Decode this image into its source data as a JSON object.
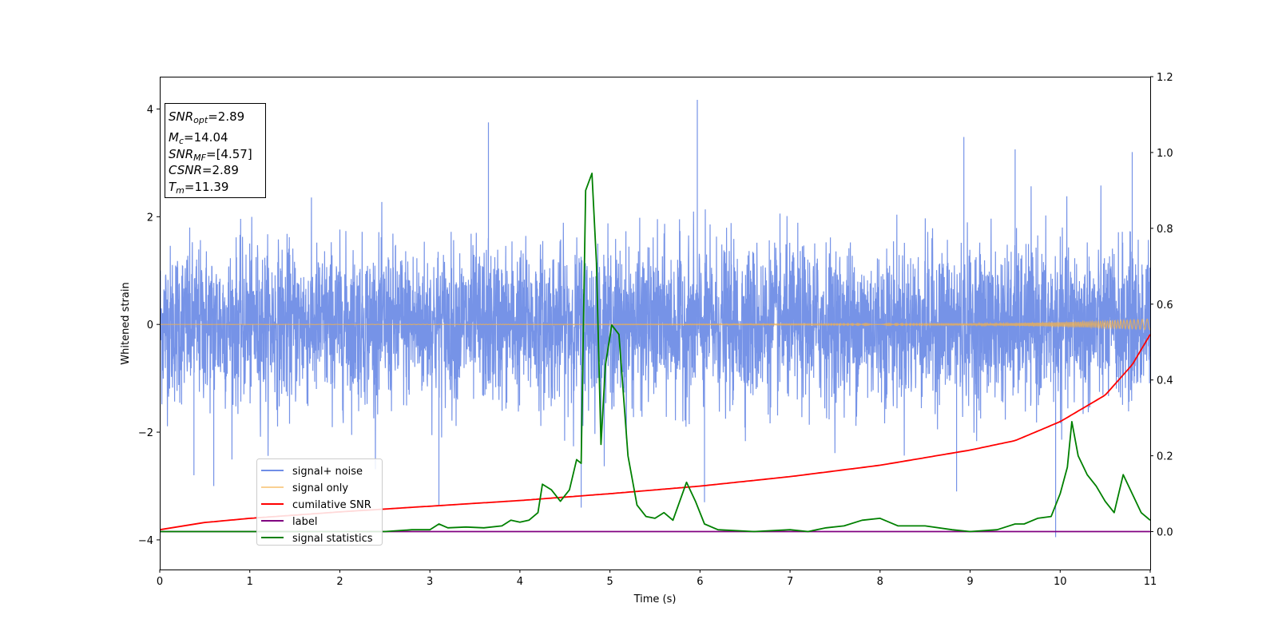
{
  "chart_data": {
    "type": "line",
    "xlabel": "Time (s)",
    "ylabel": "Whitened strain",
    "xlim": [
      0,
      11
    ],
    "ylim": [
      -4.55,
      4.6
    ],
    "y2lim": [
      -0.1,
      1.2
    ],
    "x_ticks": [
      "0",
      "1",
      "2",
      "3",
      "4",
      "5",
      "6",
      "7",
      "8",
      "9",
      "10",
      "11"
    ],
    "y_ticks": [
      "−4",
      "−2",
      "0",
      "2",
      "4"
    ],
    "y2_ticks": [
      "0.0",
      "0.2",
      "0.4",
      "0.6",
      "0.8",
      "1.0",
      "1.2"
    ],
    "grid": false,
    "legend_position": "lower-left",
    "info_box": {
      "snr_opt": {
        "main": "SNR",
        "sub": "opt",
        "value": "=2.89"
      },
      "mc": {
        "main": "M",
        "sub": "c",
        "value": "=14.04"
      },
      "snr_mf": {
        "main": "SNR",
        "sub": "MF",
        "value": "=[4.57]"
      },
      "csnr": {
        "main": "CSNR",
        "value": "=2.89"
      },
      "tm": {
        "main": "T",
        "sub": "m",
        "value": "=11.39"
      }
    },
    "series": [
      {
        "name": "signal+ noise",
        "axis": "left",
        "color": "#6f8de6",
        "description_kind": "noise",
        "envelope": {
          "typical_low": -1.7,
          "typical_high": 1.7,
          "extremes": [
            {
              "x": 0.6,
              "y": -3.0
            },
            {
              "x": 0.38,
              "y": -2.8
            },
            {
              "x": 3.1,
              "y": -3.35
            },
            {
              "x": 3.65,
              "y": 3.75
            },
            {
              "x": 4.68,
              "y": -3.4
            },
            {
              "x": 5.97,
              "y": 4.17
            },
            {
              "x": 6.05,
              "y": -3.3
            },
            {
              "x": 8.93,
              "y": 3.48
            },
            {
              "x": 8.85,
              "y": -3.1
            },
            {
              "x": 9.95,
              "y": -3.95
            },
            {
              "x": 9.5,
              "y": 3.25
            },
            {
              "x": 10.8,
              "y": 3.2
            }
          ]
        }
      },
      {
        "name": "signal only",
        "axis": "left",
        "color": "#f5b14a",
        "points": [
          [
            0,
            0.0
          ],
          [
            9.0,
            0.01
          ],
          [
            10.0,
            0.04
          ],
          [
            10.6,
            0.07
          ],
          [
            11,
            0.1
          ]
        ]
      },
      {
        "name": "cumilative SNR",
        "axis": "right",
        "color": "#ff0000",
        "points": [
          [
            0,
            0.005
          ],
          [
            0.5,
            0.024
          ],
          [
            1,
            0.035
          ],
          [
            2,
            0.052
          ],
          [
            3,
            0.067
          ],
          [
            4,
            0.082
          ],
          [
            5,
            0.1
          ],
          [
            6,
            0.12
          ],
          [
            7,
            0.145
          ],
          [
            8,
            0.175
          ],
          [
            9,
            0.215
          ],
          [
            9.5,
            0.24
          ],
          [
            10,
            0.29
          ],
          [
            10.5,
            0.36
          ],
          [
            10.8,
            0.44
          ],
          [
            11,
            0.52
          ]
        ]
      },
      {
        "name": "label",
        "axis": "right",
        "color": "#800080",
        "points": [
          [
            0,
            0.0
          ],
          [
            11,
            0.0
          ]
        ]
      },
      {
        "name": "signal statistics",
        "axis": "right",
        "color": "#008000",
        "points": [
          [
            0,
            0.0
          ],
          [
            1.0,
            0.0
          ],
          [
            2.5,
            0.0
          ],
          [
            2.8,
            0.005
          ],
          [
            3.0,
            0.005
          ],
          [
            3.1,
            0.02
          ],
          [
            3.2,
            0.01
          ],
          [
            3.4,
            0.012
          ],
          [
            3.6,
            0.01
          ],
          [
            3.8,
            0.015
          ],
          [
            3.9,
            0.03
          ],
          [
            4.0,
            0.025
          ],
          [
            4.1,
            0.03
          ],
          [
            4.2,
            0.05
          ],
          [
            4.25,
            0.125
          ],
          [
            4.35,
            0.11
          ],
          [
            4.45,
            0.08
          ],
          [
            4.55,
            0.11
          ],
          [
            4.63,
            0.19
          ],
          [
            4.68,
            0.18
          ],
          [
            4.73,
            0.9
          ],
          [
            4.8,
            0.945
          ],
          [
            4.85,
            0.71
          ],
          [
            4.9,
            0.23
          ],
          [
            4.95,
            0.44
          ],
          [
            5.02,
            0.545
          ],
          [
            5.1,
            0.52
          ],
          [
            5.2,
            0.2
          ],
          [
            5.3,
            0.07
          ],
          [
            5.4,
            0.04
          ],
          [
            5.5,
            0.035
          ],
          [
            5.6,
            0.05
          ],
          [
            5.7,
            0.03
          ],
          [
            5.85,
            0.13
          ],
          [
            5.95,
            0.08
          ],
          [
            6.05,
            0.02
          ],
          [
            6.2,
            0.005
          ],
          [
            6.6,
            0.0
          ],
          [
            7.0,
            0.005
          ],
          [
            7.2,
            0.0
          ],
          [
            7.4,
            0.01
          ],
          [
            7.6,
            0.015
          ],
          [
            7.8,
            0.03
          ],
          [
            8.0,
            0.035
          ],
          [
            8.2,
            0.015
          ],
          [
            8.5,
            0.015
          ],
          [
            8.8,
            0.005
          ],
          [
            9.0,
            0.0
          ],
          [
            9.3,
            0.005
          ],
          [
            9.5,
            0.02
          ],
          [
            9.6,
            0.02
          ],
          [
            9.75,
            0.035
          ],
          [
            9.9,
            0.04
          ],
          [
            10.0,
            0.1
          ],
          [
            10.08,
            0.17
          ],
          [
            10.13,
            0.29
          ],
          [
            10.2,
            0.2
          ],
          [
            10.3,
            0.15
          ],
          [
            10.4,
            0.12
          ],
          [
            10.5,
            0.08
          ],
          [
            10.6,
            0.05
          ],
          [
            10.7,
            0.15
          ],
          [
            10.8,
            0.1
          ],
          [
            10.9,
            0.05
          ],
          [
            11.0,
            0.03
          ]
        ]
      }
    ]
  }
}
